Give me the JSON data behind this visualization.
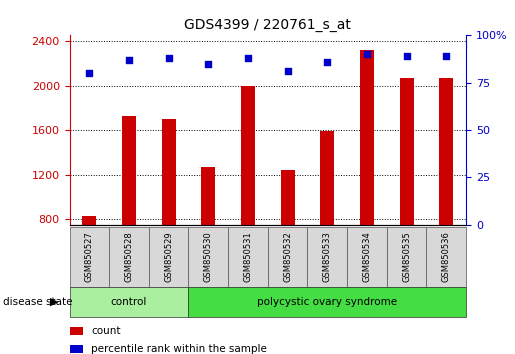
{
  "title": "GDS4399 / 220761_s_at",
  "samples": [
    "GSM850527",
    "GSM850528",
    "GSM850529",
    "GSM850530",
    "GSM850531",
    "GSM850532",
    "GSM850533",
    "GSM850534",
    "GSM850535",
    "GSM850536"
  ],
  "counts": [
    830,
    1730,
    1700,
    1270,
    2000,
    1240,
    1590,
    2320,
    2070,
    2070
  ],
  "percentiles": [
    80,
    87,
    88,
    85,
    88,
    81,
    86,
    90,
    89,
    89
  ],
  "bar_color": "#cc0000",
  "dot_color": "#0000cc",
  "ylim_left": [
    750,
    2450
  ],
  "yticks_left": [
    800,
    1200,
    1600,
    2000,
    2400
  ],
  "ylim_right": [
    0,
    100
  ],
  "yticks_right": [
    0,
    25,
    50,
    75,
    100
  ],
  "ytick_right_labels": [
    "0",
    "25",
    "50",
    "75",
    "100%"
  ],
  "groups": [
    {
      "label": "control",
      "start": 0,
      "end": 3,
      "color": "#aaeea0"
    },
    {
      "label": "polycystic ovary syndrome",
      "start": 3,
      "end": 10,
      "color": "#44dd44"
    }
  ],
  "disease_state_label": "disease state",
  "legend_items": [
    {
      "label": "count",
      "color": "#cc0000"
    },
    {
      "label": "percentile rank within the sample",
      "color": "#0000cc"
    }
  ],
  "sample_box_color": "#d8d8d8",
  "background_color": "#ffffff",
  "bar_width": 0.35
}
